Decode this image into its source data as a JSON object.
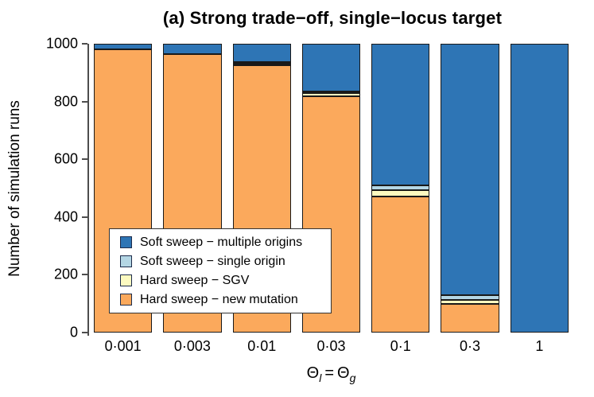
{
  "title": "(a) Strong trade−off, single−locus target",
  "y_axis": {
    "label": "Number of simulation runs",
    "tick_labels": [
      "0",
      "200",
      "400",
      "600",
      "800",
      "1000"
    ]
  },
  "x_axis": {
    "title_flat": "Θl = Θg",
    "title_parts": {
      "theta1": "Θ",
      "sub1": "l",
      "equals": "=",
      "theta2": "Θ",
      "sub2": "g"
    },
    "tick_labels": [
      "0·001",
      "0·003",
      "0·01",
      "0·03",
      "0·1",
      "0·3",
      "1"
    ]
  },
  "legend": {
    "items": [
      {
        "label": "Soft sweep − multiple origins",
        "color": "#2E75B5"
      },
      {
        "label": "Soft sweep − single origin",
        "color": "#B4D6E4"
      },
      {
        "label": "Hard sweep − SGV",
        "color": "#FCFAC0"
      },
      {
        "label": "Hard sweep − new mutation",
        "color": "#FBA95C"
      }
    ]
  },
  "colors": {
    "soft_multiple": "#2E75B5",
    "soft_single": "#B4D6E4",
    "hard_sgv": "#FCFAC0",
    "hard_new_mutation": "#FBA95C",
    "bar_border": "#191919",
    "axis": "#4d4d4d"
  },
  "chart_data": {
    "type": "bar",
    "stacked": true,
    "title": "(a) Strong trade−off, single−locus target",
    "xlabel": "Θl = Θg",
    "ylabel": "Number of simulation runs",
    "ylim": [
      0,
      1000
    ],
    "yticks": [
      0,
      200,
      400,
      600,
      800,
      1000
    ],
    "grid": false,
    "legend_position": "inside lower-left",
    "categories": [
      "0·001",
      "0·003",
      "0·01",
      "0·03",
      "0·1",
      "0·3",
      "1"
    ],
    "series": [
      {
        "name": "Hard sweep − new mutation",
        "color": "#FBA95C",
        "values": [
          982,
          965,
          925,
          820,
          470,
          100,
          0
        ]
      },
      {
        "name": "Hard sweep − SGV",
        "color": "#FCFAC0",
        "values": [
          0,
          0,
          6,
          12,
          23,
          14,
          0
        ]
      },
      {
        "name": "Soft sweep − single origin",
        "color": "#B4D6E4",
        "values": [
          0,
          0,
          5,
          3,
          17,
          16,
          0
        ]
      },
      {
        "name": "Soft sweep − multiple origins",
        "color": "#2E75B5",
        "values": [
          18,
          35,
          64,
          165,
          490,
          870,
          1000
        ]
      }
    ]
  }
}
